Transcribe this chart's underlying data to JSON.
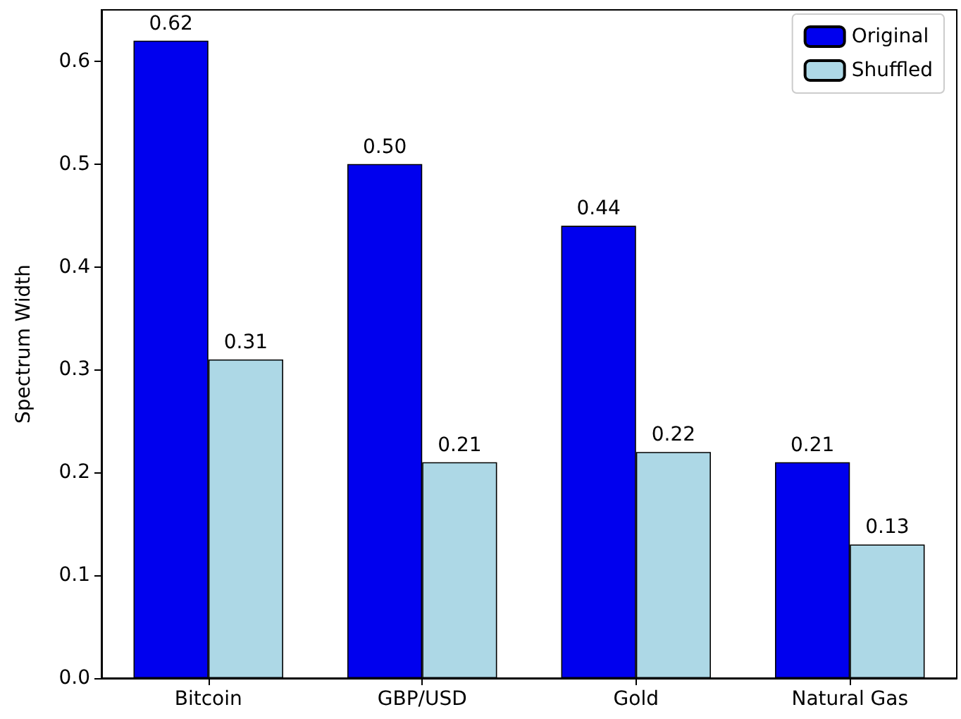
{
  "chart_data": {
    "type": "bar",
    "ylabel": "Spectrum Width",
    "categories": [
      "Bitcoin",
      "GBP/USD",
      "Gold",
      "Natural Gas"
    ],
    "series": [
      {
        "name": "Original",
        "color": "#0000ee",
        "values": [
          0.62,
          0.5,
          0.44,
          0.21
        ],
        "value_labels": [
          "0.62",
          "0.50",
          "0.44",
          "0.21"
        ]
      },
      {
        "name": "Shuffled",
        "color": "#add8e6",
        "values": [
          0.31,
          0.21,
          0.22,
          0.13
        ],
        "value_labels": [
          "0.31",
          "0.21",
          "0.22",
          "0.13"
        ]
      }
    ],
    "ylim": [
      0,
      0.65
    ],
    "yticks": [
      {
        "value": 0,
        "label": "0.0"
      },
      {
        "value": 0.1,
        "label": "0.1"
      },
      {
        "value": 0.2,
        "label": "0.2"
      },
      {
        "value": 0.3,
        "label": "0.3"
      },
      {
        "value": 0.4,
        "label": "0.4"
      },
      {
        "value": 0.5,
        "label": "0.5"
      },
      {
        "value": 0.6,
        "label": "0.6"
      }
    ],
    "grid": false,
    "legend": "top right"
  }
}
